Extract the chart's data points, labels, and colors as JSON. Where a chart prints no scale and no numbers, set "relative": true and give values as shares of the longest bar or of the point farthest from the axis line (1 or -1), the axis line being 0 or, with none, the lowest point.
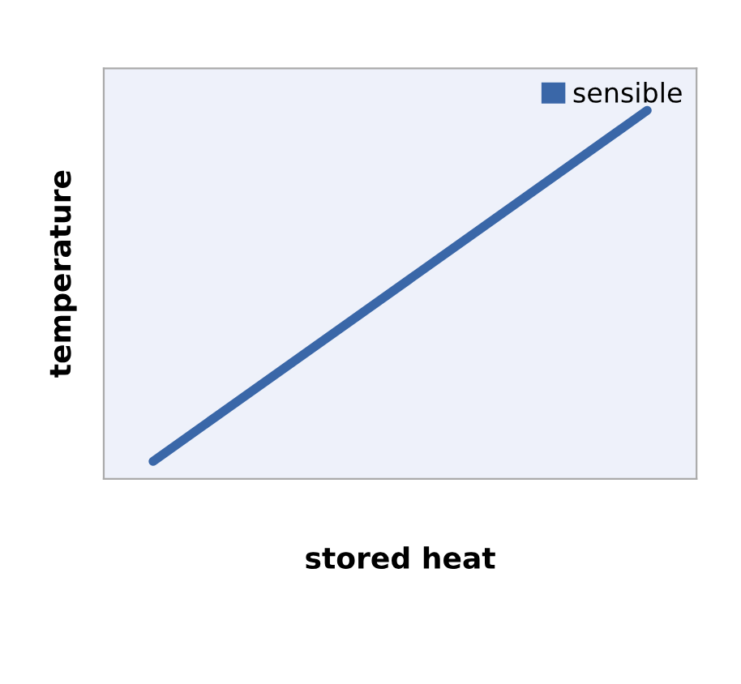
{
  "chart_data": {
    "type": "line",
    "xlabel": "stored heat",
    "ylabel": "temperature",
    "categories": [
      null,
      null
    ],
    "series": [
      {
        "name": "sensible",
        "color": "#3a67a8",
        "values": [
          0,
          1
        ]
      }
    ],
    "relative": true,
    "legend": "top right",
    "marker": "none",
    "line_style": "solid"
  }
}
